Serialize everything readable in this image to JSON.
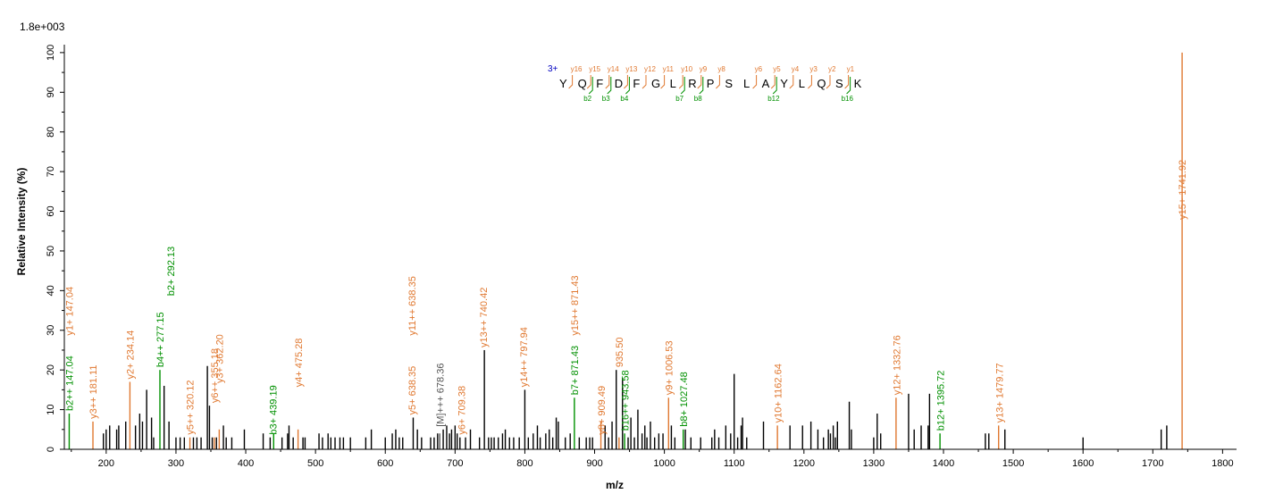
{
  "chart_data": {
    "type": "bar",
    "subtype": "mass-spectrum",
    "title": "",
    "max_intensity_label": "1.8e+003",
    "xlabel": "m/z",
    "ylabel": "Relative   Intensity (%)",
    "xlim": [
      140,
      1820
    ],
    "ylim": [
      0,
      102
    ],
    "xticks": [
      200,
      300,
      400,
      500,
      600,
      700,
      800,
      900,
      1000,
      1100,
      1200,
      1300,
      1400,
      1500,
      1600,
      1700,
      1800
    ],
    "yticks": [
      0,
      10,
      20,
      30,
      40,
      50,
      60,
      70,
      80,
      90,
      100
    ],
    "colors": {
      "y_ion": "#e07830",
      "b_ion": "#009000",
      "other": "#555555",
      "peak": "#000000",
      "charge": "#0000c0"
    },
    "peaks": [
      [
        147,
        9
      ],
      [
        181,
        7
      ],
      [
        196,
        4
      ],
      [
        200,
        5
      ],
      [
        205,
        6
      ],
      [
        215,
        5
      ],
      [
        218,
        6
      ],
      [
        228,
        7
      ],
      [
        234,
        17
      ],
      [
        242,
        6
      ],
      [
        248,
        9
      ],
      [
        252,
        7
      ],
      [
        258,
        15
      ],
      [
        265,
        8
      ],
      [
        268,
        3
      ],
      [
        277,
        20
      ],
      [
        283,
        16
      ],
      [
        290,
        7
      ],
      [
        300,
        3
      ],
      [
        306,
        3
      ],
      [
        312,
        3
      ],
      [
        320,
        3
      ],
      [
        325,
        3
      ],
      [
        330,
        3
      ],
      [
        336,
        3
      ],
      [
        345,
        21
      ],
      [
        348,
        11
      ],
      [
        352,
        3
      ],
      [
        355,
        3
      ],
      [
        358,
        3
      ],
      [
        362,
        5
      ],
      [
        368,
        6
      ],
      [
        372,
        3
      ],
      [
        380,
        3
      ],
      [
        398,
        5
      ],
      [
        425,
        4
      ],
      [
        435,
        3
      ],
      [
        440,
        4
      ],
      [
        452,
        3
      ],
      [
        460,
        4
      ],
      [
        462,
        6
      ],
      [
        468,
        3
      ],
      [
        475,
        5
      ],
      [
        482,
        3
      ],
      [
        485,
        3
      ],
      [
        505,
        4
      ],
      [
        510,
        3
      ],
      [
        518,
        4
      ],
      [
        522,
        3
      ],
      [
        528,
        3
      ],
      [
        535,
        3
      ],
      [
        540,
        3
      ],
      [
        550,
        3
      ],
      [
        572,
        3
      ],
      [
        580,
        5
      ],
      [
        600,
        3
      ],
      [
        610,
        4
      ],
      [
        615,
        5
      ],
      [
        620,
        3
      ],
      [
        625,
        3
      ],
      [
        640,
        8
      ],
      [
        646,
        5
      ],
      [
        652,
        3
      ],
      [
        665,
        3
      ],
      [
        670,
        3
      ],
      [
        675,
        4
      ],
      [
        678,
        4
      ],
      [
        683,
        5
      ],
      [
        688,
        6
      ],
      [
        692,
        4
      ],
      [
        695,
        5
      ],
      [
        700,
        6
      ],
      [
        703,
        4
      ],
      [
        707,
        3
      ],
      [
        715,
        3
      ],
      [
        722,
        5
      ],
      [
        735,
        3
      ],
      [
        742,
        25
      ],
      [
        748,
        3
      ],
      [
        752,
        3
      ],
      [
        756,
        3
      ],
      [
        762,
        3
      ],
      [
        768,
        4
      ],
      [
        772,
        5
      ],
      [
        778,
        3
      ],
      [
        784,
        3
      ],
      [
        792,
        3
      ],
      [
        800,
        15
      ],
      [
        805,
        3
      ],
      [
        812,
        4
      ],
      [
        818,
        6
      ],
      [
        822,
        3
      ],
      [
        830,
        4
      ],
      [
        835,
        5
      ],
      [
        840,
        3
      ],
      [
        845,
        8
      ],
      [
        848,
        7
      ],
      [
        858,
        3
      ],
      [
        865,
        4
      ],
      [
        871,
        13
      ],
      [
        878,
        3
      ],
      [
        888,
        3
      ],
      [
        893,
        3
      ],
      [
        897,
        3
      ],
      [
        909,
        7
      ],
      [
        915,
        6
      ],
      [
        920,
        3
      ],
      [
        925,
        7
      ],
      [
        931,
        20
      ],
      [
        935,
        3
      ],
      [
        940,
        18
      ],
      [
        943,
        4
      ],
      [
        948,
        3
      ],
      [
        952,
        8
      ],
      [
        957,
        3
      ],
      [
        962,
        10
      ],
      [
        968,
        4
      ],
      [
        972,
        6
      ],
      [
        975,
        3
      ],
      [
        980,
        7
      ],
      [
        986,
        3
      ],
      [
        992,
        4
      ],
      [
        998,
        4
      ],
      [
        1006,
        13
      ],
      [
        1010,
        6
      ],
      [
        1015,
        3
      ],
      [
        1027,
        5
      ],
      [
        1030,
        5
      ],
      [
        1038,
        3
      ],
      [
        1052,
        3
      ],
      [
        1068,
        3
      ],
      [
        1072,
        5
      ],
      [
        1078,
        3
      ],
      [
        1088,
        6
      ],
      [
        1095,
        4
      ],
      [
        1100,
        19
      ],
      [
        1105,
        3
      ],
      [
        1110,
        6
      ],
      [
        1112,
        8
      ],
      [
        1118,
        3
      ],
      [
        1142,
        7
      ],
      [
        1162,
        6
      ],
      [
        1180,
        6
      ],
      [
        1198,
        6
      ],
      [
        1210,
        7
      ],
      [
        1220,
        5
      ],
      [
        1228,
        3
      ],
      [
        1235,
        5
      ],
      [
        1238,
        4
      ],
      [
        1242,
        6
      ],
      [
        1245,
        3
      ],
      [
        1248,
        7
      ],
      [
        1265,
        12
      ],
      [
        1268,
        5
      ],
      [
        1300,
        3
      ],
      [
        1305,
        9
      ],
      [
        1310,
        4
      ],
      [
        1332,
        13
      ],
      [
        1350,
        14
      ],
      [
        1358,
        5
      ],
      [
        1368,
        6
      ],
      [
        1378,
        6
      ],
      [
        1380,
        14
      ],
      [
        1395,
        4
      ],
      [
        1460,
        4
      ],
      [
        1465,
        4
      ],
      [
        1479,
        6
      ],
      [
        1488,
        5
      ],
      [
        1600,
        3
      ],
      [
        1712,
        5
      ],
      [
        1720,
        6
      ],
      [
        1742,
        100
      ]
    ],
    "annotations": [
      {
        "mz": 147.04,
        "y": 9,
        "label": "b2++ 147.04",
        "ion": "b"
      },
      {
        "mz": 147.04,
        "y": 28,
        "label": "y1+ 147.04",
        "ion": "y"
      },
      {
        "mz": 181.11,
        "y": 7,
        "label": "y3++ 181.11",
        "ion": "y"
      },
      {
        "mz": 234.14,
        "y": 17,
        "label": "y2+ 234.14",
        "ion": "y"
      },
      {
        "mz": 277.15,
        "y": 20,
        "label": "b4++ 277.15",
        "ion": "b"
      },
      {
        "mz": 292.13,
        "y": 38,
        "label": "b2+ 292.13",
        "ion": "b"
      },
      {
        "mz": 320.12,
        "y": 3,
        "label": "y5++ 320.12",
        "ion": "y"
      },
      {
        "mz": 355.18,
        "y": 11,
        "label": "y6++ 355.18",
        "ion": "y"
      },
      {
        "mz": 362.2,
        "y": 16,
        "label": "y3+ 362.20",
        "ion": "y"
      },
      {
        "mz": 439.19,
        "y": 3,
        "label": "b3+ 439.19",
        "ion": "b"
      },
      {
        "mz": 475.28,
        "y": 15,
        "label": "y4+ 475.28",
        "ion": "y"
      },
      {
        "mz": 638.35,
        "y": 8,
        "label": "y5+ 638.35",
        "ion": "y"
      },
      {
        "mz": 638.35,
        "y": 28,
        "label": "y11++ 638.35",
        "ion": "y"
      },
      {
        "mz": 678.36,
        "y": 5,
        "label": "[M]+++ 678.36",
        "ion": "other"
      },
      {
        "mz": 709.38,
        "y": 3,
        "label": "y6+ 709.38",
        "ion": "y"
      },
      {
        "mz": 740.42,
        "y": 25,
        "label": "y13++ 740.42",
        "ion": "y"
      },
      {
        "mz": 797.94,
        "y": 15,
        "label": "y14++ 797.94",
        "ion": "y"
      },
      {
        "mz": 871.43,
        "y": 13,
        "label": "b7+ 871.43",
        "ion": "b"
      },
      {
        "mz": 871.43,
        "y": 28,
        "label": "y15++ 871.43",
        "ion": "y"
      },
      {
        "mz": 909.49,
        "y": 3,
        "label": "y8+ 909.49",
        "ion": "y"
      },
      {
        "mz": 935.5,
        "y": 20,
        "label": "935.50",
        "ion": "y"
      },
      {
        "mz": 943.58,
        "y": 4,
        "label": "b16++ 943.58",
        "ion": "b"
      },
      {
        "mz": 1006.53,
        "y": 13,
        "label": "y9+ 1006.53",
        "ion": "y"
      },
      {
        "mz": 1027.48,
        "y": 5,
        "label": "b8+ 1027.48",
        "ion": "b"
      },
      {
        "mz": 1162.64,
        "y": 6,
        "label": "y10+ 1162.64",
        "ion": "y"
      },
      {
        "mz": 1332.76,
        "y": 13,
        "label": "y12+ 1332.76",
        "ion": "y"
      },
      {
        "mz": 1395.72,
        "y": 4,
        "label": "b12+ 1395.72",
        "ion": "b"
      },
      {
        "mz": 1479.77,
        "y": 6,
        "label": "y13+ 1479.77",
        "ion": "y"
      },
      {
        "mz": 1741.92,
        "y": 100,
        "label": "y15+ 1741.92",
        "ion": "y"
      }
    ],
    "sequence": {
      "charge": "3+",
      "residues": [
        "Y",
        "Q",
        "F",
        "D",
        "F",
        "G",
        "L",
        "R",
        "P",
        "S",
        "L",
        "A",
        "Y",
        "L",
        "Q",
        "S",
        "K"
      ],
      "y_ions": [
        "y16",
        "y15",
        "y14",
        "y13",
        "y12",
        "y11",
        "y10",
        "y9",
        "y8",
        "y6",
        "y5",
        "y4",
        "y3",
        "y2",
        "y1"
      ],
      "b_ions": [
        "b2",
        "b3",
        "b4",
        "b7",
        "b8",
        "b12",
        "b16"
      ]
    }
  }
}
